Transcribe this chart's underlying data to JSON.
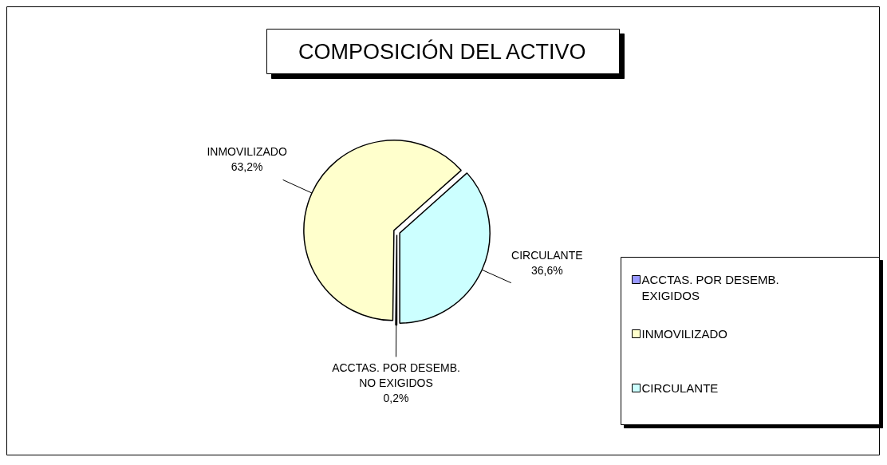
{
  "chart_data": {
    "type": "pie",
    "title": "COMPOSICIÓN DEL ACTIVO",
    "categories": [
      "ACCTAS. POR DESEMB. EXIGIDOS",
      "INMOVILIZADO",
      "CIRCULANTE"
    ],
    "values": [
      0.2,
      63.2,
      36.6
    ],
    "colors": [
      "#9999ff",
      "#ffffcc",
      "#ccffff"
    ],
    "value_labels": [
      "ACCTAS. POR DESEMB.\nNO EXIGIDOS\n0,2%",
      "INMOVILIZADO\n63,2%",
      "CIRCULANTE\n36,6%"
    ],
    "legend": "right"
  }
}
